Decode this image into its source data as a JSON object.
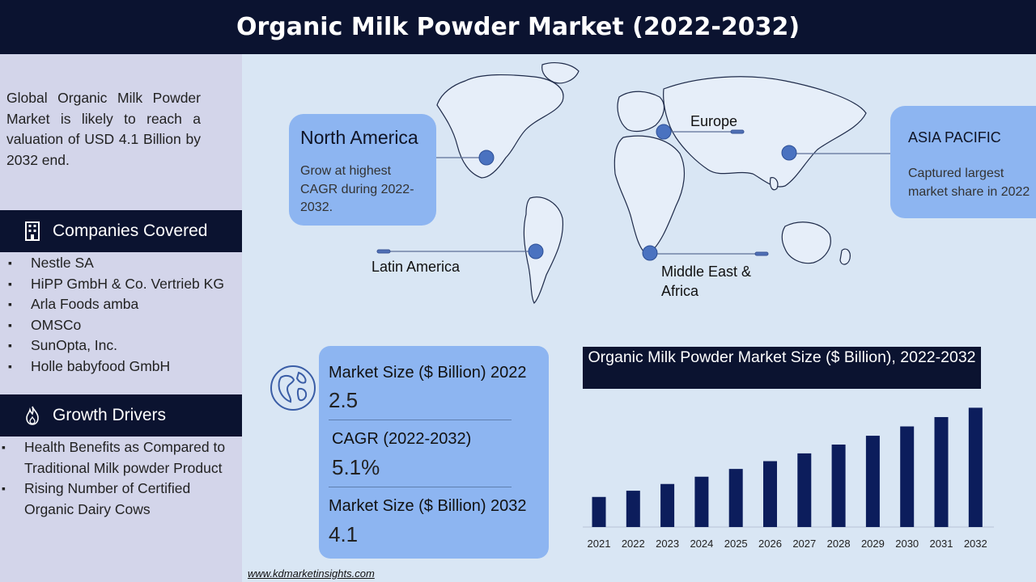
{
  "title": "Organic Milk Powder Market (2022-2032)",
  "intro": "Global Organic Milk Powder Market is likely to reach a valuation of USD 4.1 Billion by 2032 end.",
  "companies": {
    "heading": "Companies Covered",
    "icon": "building-icon",
    "items": [
      "Nestle SA",
      "HiPP GmbH & Co. Vertrieb KG",
      "Arla Foods amba",
      "OMSCo",
      "SunOpta, Inc.",
      "Holle babyfood GmbH"
    ]
  },
  "drivers": {
    "heading": "Growth Drivers",
    "icon": "flame-icon",
    "items": [
      "Health Benefits as Compared to Traditional Milk powder Product",
      "Rising Number of Certified Organic Dairy Cows"
    ]
  },
  "regions": {
    "north_america": {
      "title": "North America",
      "text": "Grow at highest CAGR during 2022-2032."
    },
    "asia_pacific": {
      "title": "ASIA PACIFIC",
      "text": "Captured largest market share in 2022"
    },
    "europe": "Europe",
    "latin_america": "Latin America",
    "mea": "Middle East & Africa"
  },
  "stats": {
    "icon": "globe-icon",
    "size_2022_label": "Market Size ($ Billion) 2022",
    "size_2022_value": "2.5",
    "cagr_label": "CAGR (2022-2032)",
    "cagr_value": "5.1%",
    "size_2032_label": "Market Size ($ Billion) 2032",
    "size_2032_value": "4.1"
  },
  "chart_data": {
    "type": "bar",
    "title": "Organic Milk Powder Market Size ($ Billion), 2022-2032",
    "categories": [
      "2021",
      "2022",
      "2023",
      "2024",
      "2025",
      "2026",
      "2027",
      "2028",
      "2029",
      "2030",
      "2031",
      "2032"
    ],
    "values": [
      2.38,
      2.5,
      2.63,
      2.77,
      2.92,
      3.07,
      3.22,
      3.39,
      3.56,
      3.74,
      3.92,
      4.1
    ],
    "bar_color": "#0c1d5c",
    "ylim": [
      1.8,
      4.2
    ],
    "grid": false
  },
  "footer": "www.kdmarketinsights.com"
}
